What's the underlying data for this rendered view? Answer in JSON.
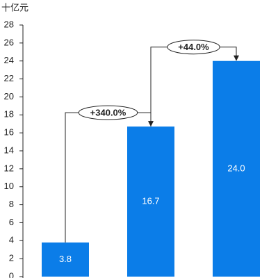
{
  "chart_data": {
    "type": "bar",
    "y_label": "十亿元",
    "categories": [
      null,
      null,
      null
    ],
    "values": [
      3.8,
      16.7,
      24.0
    ],
    "value_labels": [
      "3.8",
      "16.7",
      "24.0"
    ],
    "color": "#0b7de8",
    "ylim": [
      0,
      28
    ],
    "yticks": [
      0,
      2,
      4,
      6,
      8,
      10,
      12,
      14,
      16,
      18,
      20,
      22,
      24,
      26,
      28
    ],
    "annotations": [
      "+340.0%",
      "+44.0%"
    ]
  }
}
